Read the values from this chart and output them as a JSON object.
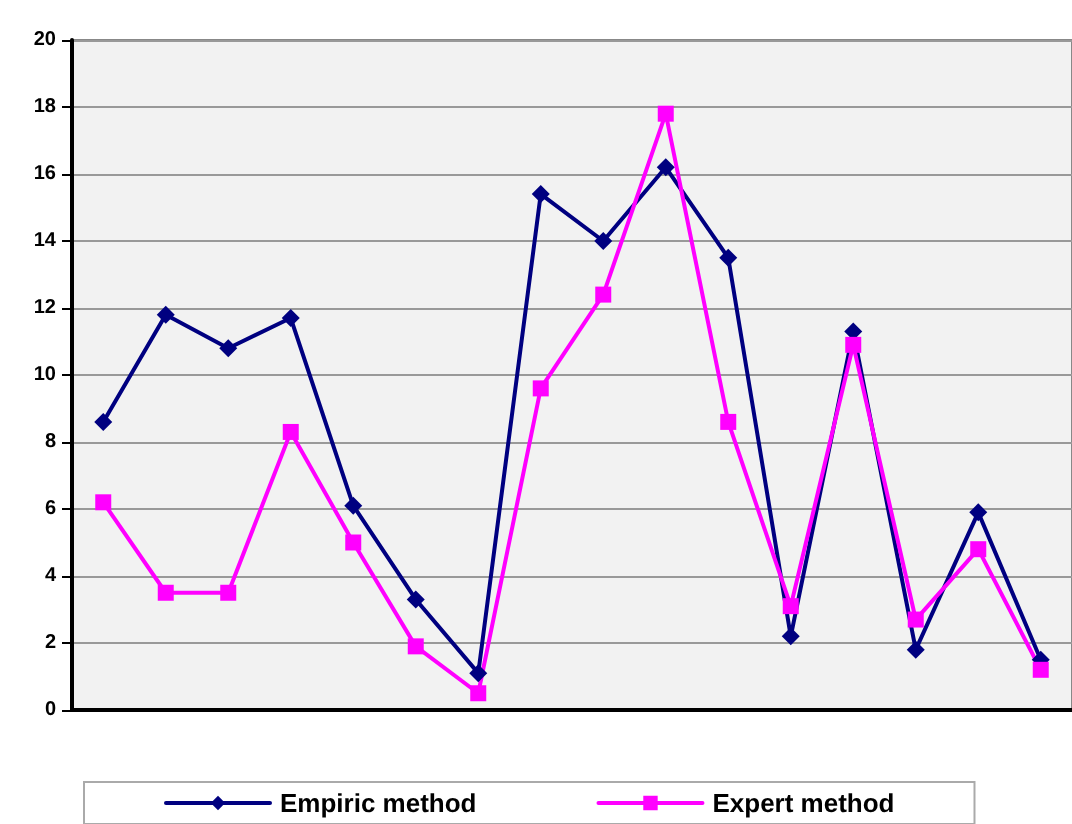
{
  "chart_data": {
    "type": "line",
    "categories": [
      null,
      null,
      null,
      null,
      null,
      null,
      null,
      null,
      null,
      null,
      null,
      null,
      null,
      null,
      null,
      null
    ],
    "series": [
      {
        "name": "Empiric method",
        "color": "#000080",
        "marker": "diamond",
        "values": [
          8.6,
          11.8,
          10.8,
          11.7,
          6.1,
          3.3,
          1.1,
          15.4,
          14.0,
          16.2,
          13.5,
          2.2,
          11.3,
          1.8,
          5.9,
          1.5
        ]
      },
      {
        "name": "Expert method",
        "color": "#ff00ff",
        "marker": "square",
        "values": [
          6.2,
          3.5,
          3.5,
          8.3,
          5.0,
          1.9,
          0.5,
          9.6,
          12.4,
          17.8,
          8.6,
          3.1,
          10.9,
          2.7,
          4.8,
          1.2
        ]
      }
    ],
    "ylim": [
      0,
      20
    ],
    "yticks": [
      0,
      2,
      4,
      6,
      8,
      10,
      12,
      14,
      16,
      18,
      20
    ],
    "grid": "y",
    "legend": "bottom"
  }
}
